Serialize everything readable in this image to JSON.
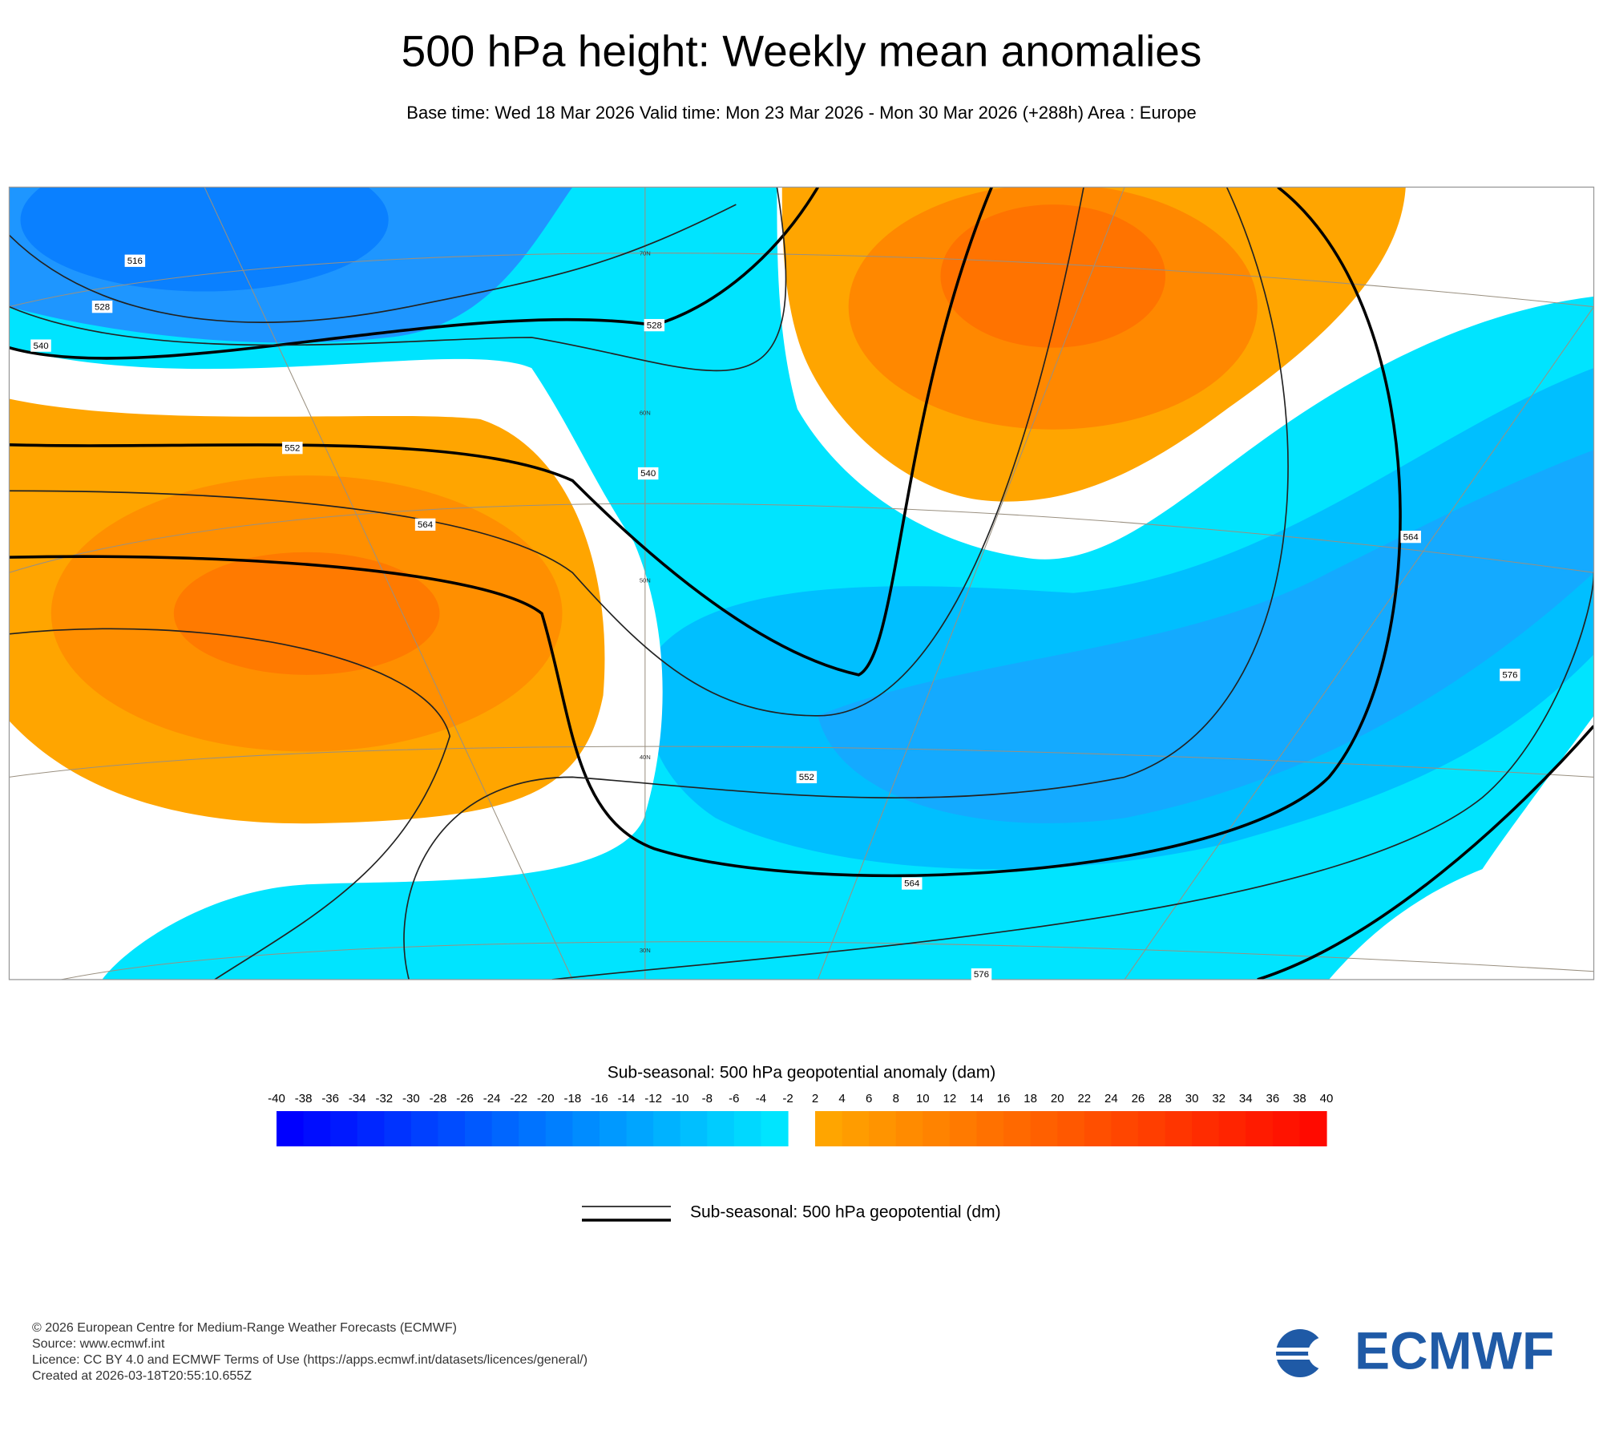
{
  "header": {
    "title": "500 hPa height: Weekly mean anomalies",
    "subtitle": "Base time: Wed 18 Mar 2026 Valid time: Mon 23 Mar 2026 - Mon 30 Mar 2026 (+288h) Area : Europe"
  },
  "map": {
    "contour_labels": [
      "516",
      "528",
      "528",
      "540",
      "540",
      "552",
      "552",
      "564",
      "564",
      "564",
      "576",
      "576"
    ],
    "latitude_labels": [
      "70N",
      "60N",
      "50N",
      "40N",
      "30N"
    ]
  },
  "colorbar": {
    "title": "Sub-seasonal: 500 hPa geopotential anomaly (dam)",
    "negative_ticks": [
      -40,
      -38,
      -36,
      -34,
      -32,
      -30,
      -28,
      -26,
      -24,
      -22,
      -20,
      -18,
      -16,
      -14,
      -12,
      -10,
      -8,
      -6,
      -4,
      -2
    ],
    "positive_ticks": [
      2,
      4,
      6,
      8,
      10,
      12,
      14,
      16,
      18,
      20,
      22,
      24,
      26,
      28,
      30,
      32,
      34,
      36,
      38,
      40
    ]
  },
  "legend": {
    "label": "Sub-seasonal: 500 hPa geopotential (dm)"
  },
  "footer": {
    "lines": [
      "© 2026 European Centre for Medium-Range Weather Forecasts (ECMWF)",
      "Source: www.ecmwf.int",
      "Licence: CC BY 4.0 and ECMWF Terms of Use (https://apps.ecmwf.int/datasets/licences/general/)",
      "Created at 2026-03-18T20:55:10.655Z"
    ],
    "logo": "ECMWF"
  }
}
